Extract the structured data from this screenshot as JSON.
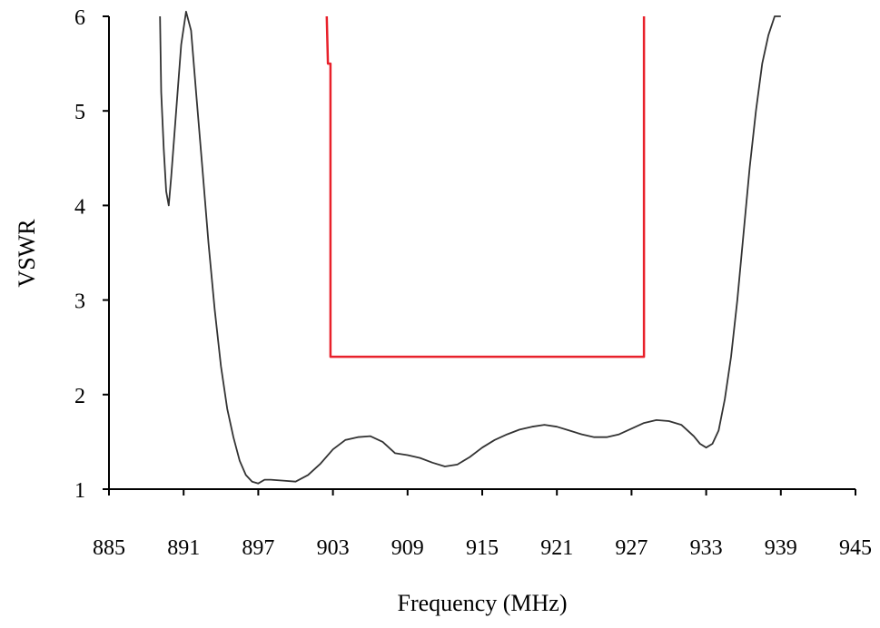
{
  "chart_data": {
    "type": "line",
    "title": "",
    "xlabel": "Frequency (MHz)",
    "ylabel": "VSWR",
    "xlim": [
      885,
      945
    ],
    "ylim": [
      1,
      6
    ],
    "xticks": [
      885,
      891,
      897,
      903,
      909,
      915,
      921,
      927,
      933,
      939,
      945
    ],
    "yticks": [
      1,
      2,
      3,
      4,
      5,
      6
    ],
    "grid": false,
    "legend": "none",
    "colors": {
      "measured": "#333333",
      "spec": "#e8212b",
      "axis": "#000000"
    },
    "series": [
      {
        "role": "measured",
        "x": [
          889.1,
          889.2,
          889.4,
          889.6,
          889.8,
          890.0,
          890.4,
          890.8,
          891.2,
          891.6,
          892.0,
          892.5,
          893.0,
          893.5,
          894.0,
          894.5,
          895.0,
          895.5,
          896.0,
          896.5,
          897.0,
          897.5,
          898.0,
          899.0,
          900.0,
          901.0,
          902.0,
          903.0,
          904.0,
          905.0,
          906.0,
          907.0,
          908.0,
          909.0,
          910.0,
          911.0,
          912.0,
          913.0,
          914.0,
          915.0,
          916.0,
          917.0,
          918.0,
          919.0,
          920.0,
          921.0,
          922.0,
          923.0,
          924.0,
          925.0,
          926.0,
          927.0,
          928.0,
          929.0,
          930.0,
          931.0,
          932.0,
          932.5,
          933.0,
          933.5,
          934.0,
          934.5,
          935.0,
          935.5,
          936.0,
          936.5,
          937.0,
          937.5,
          938.0,
          938.5,
          939.0
        ],
        "y": [
          6.0,
          5.2,
          4.6,
          4.15,
          4.0,
          4.3,
          5.0,
          5.7,
          6.05,
          5.85,
          5.2,
          4.4,
          3.6,
          2.9,
          2.3,
          1.85,
          1.55,
          1.3,
          1.15,
          1.08,
          1.06,
          1.1,
          1.1,
          1.09,
          1.08,
          1.15,
          1.27,
          1.42,
          1.52,
          1.55,
          1.56,
          1.5,
          1.38,
          1.36,
          1.33,
          1.28,
          1.24,
          1.26,
          1.34,
          1.44,
          1.52,
          1.58,
          1.63,
          1.66,
          1.68,
          1.66,
          1.62,
          1.58,
          1.55,
          1.55,
          1.58,
          1.64,
          1.7,
          1.73,
          1.72,
          1.68,
          1.56,
          1.48,
          1.44,
          1.48,
          1.62,
          1.95,
          2.4,
          3.0,
          3.7,
          4.4,
          5.0,
          5.5,
          5.8,
          6.0,
          6.0
        ]
      },
      {
        "role": "spec",
        "x": [
          902.5,
          902.6,
          902.8,
          902.8,
          928.0,
          928.0
        ],
        "y": [
          6.0,
          5.5,
          5.5,
          2.4,
          2.4,
          6.0
        ]
      }
    ]
  }
}
